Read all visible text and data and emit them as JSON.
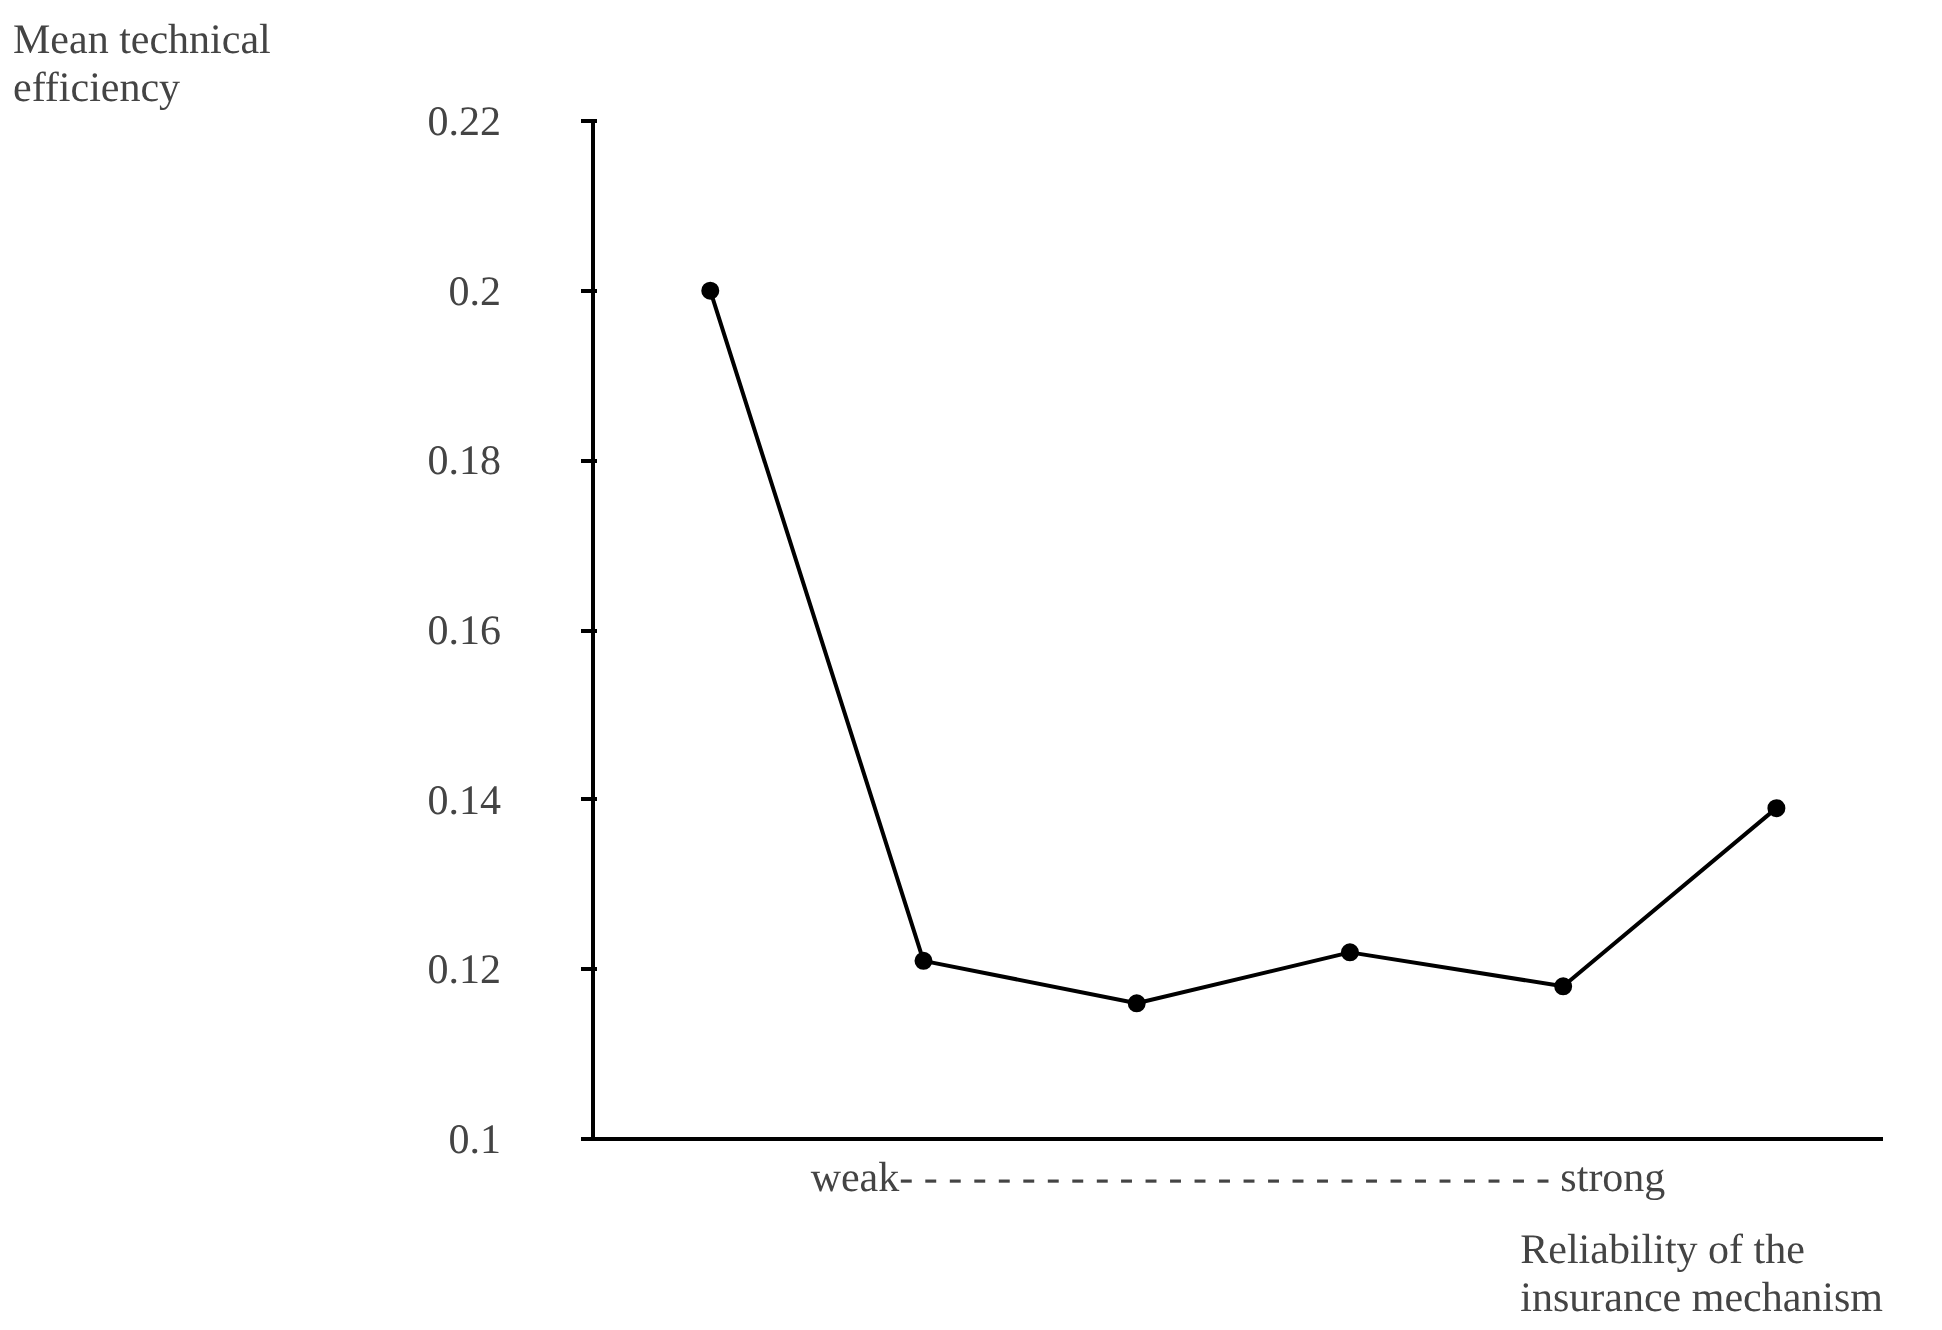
{
  "chart_data": {
    "type": "line",
    "ylabel": "Mean technical efficiency",
    "xlabel": "Reliability of the insurance mechanism",
    "annotations": [
      "weak- - - - - - - - - - - - - - - - - - - - - - - - - - - strong"
    ],
    "categories": [
      null,
      null,
      null,
      null,
      null,
      null
    ],
    "series": [
      {
        "color": "#000000",
        "values": [
          0.2,
          0.121,
          0.116,
          0.122,
          0.118,
          0.139
        ]
      }
    ],
    "ylim": [
      0.1,
      0.22
    ],
    "yticks": [
      0.1,
      0.12,
      0.14,
      0.16,
      0.18,
      0.2,
      0.22
    ],
    "marker": "circle",
    "line_style": "solid",
    "grid": false
  }
}
